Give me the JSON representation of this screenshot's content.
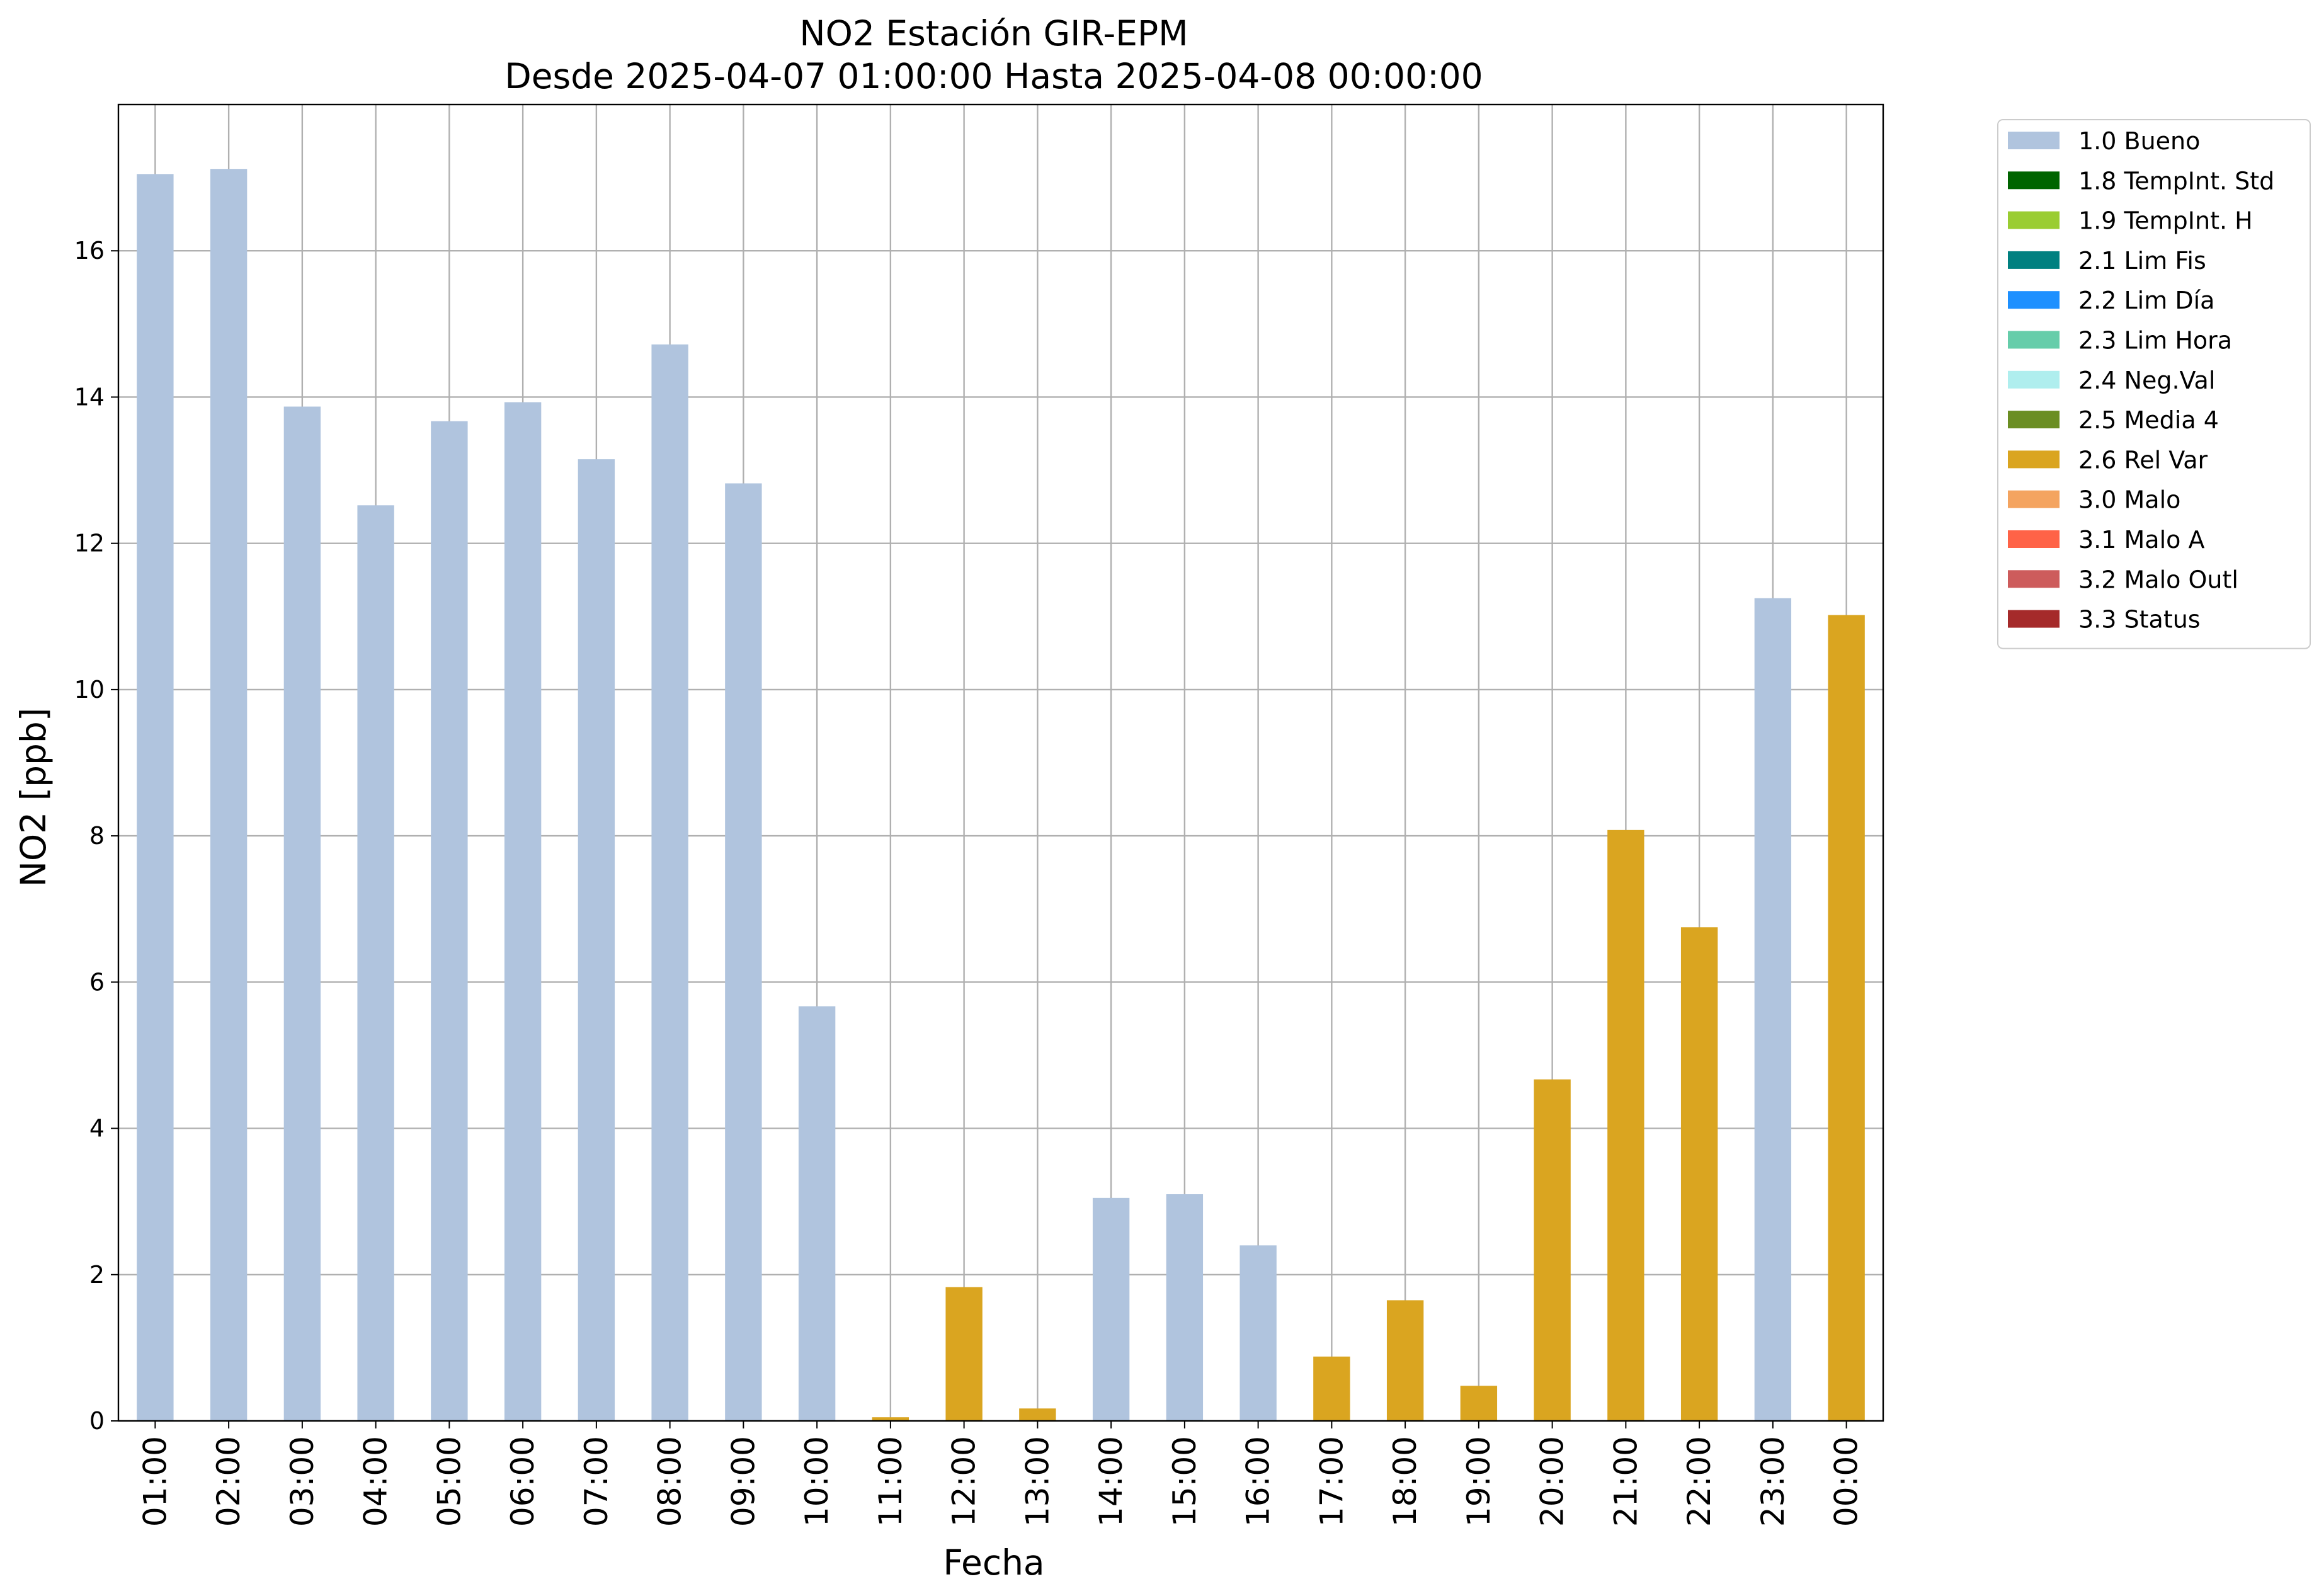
{
  "chart_data": {
    "type": "bar",
    "title": "NO2 Estación GIR-EPM",
    "subtitle": "Desde 2025-04-07 01:00:00 Hasta 2025-04-08 00:00:00",
    "xlabel": "Fecha",
    "ylabel": "NO2 [ppb]",
    "ylim": [
      0,
      18
    ],
    "yticks": [
      0,
      2,
      4,
      6,
      8,
      10,
      12,
      14,
      16
    ],
    "grid": true,
    "legend_position": "outside-top-right",
    "categories": [
      "01:00",
      "02:00",
      "03:00",
      "04:00",
      "05:00",
      "06:00",
      "07:00",
      "08:00",
      "09:00",
      "10:00",
      "11:00",
      "12:00",
      "13:00",
      "14:00",
      "15:00",
      "16:00",
      "17:00",
      "18:00",
      "19:00",
      "20:00",
      "21:00",
      "22:00",
      "23:00",
      "00:00"
    ],
    "values": [
      17.05,
      17.12,
      13.87,
      12.52,
      13.67,
      13.93,
      13.15,
      14.72,
      12.82,
      5.67,
      0.05,
      1.83,
      0.17,
      3.05,
      3.1,
      2.4,
      0.88,
      1.65,
      0.48,
      4.67,
      8.08,
      6.75,
      11.25,
      11.02
    ],
    "flags": [
      "1.0 Bueno",
      "1.0 Bueno",
      "1.0 Bueno",
      "1.0 Bueno",
      "1.0 Bueno",
      "1.0 Bueno",
      "1.0 Bueno",
      "1.0 Bueno",
      "1.0 Bueno",
      "1.0 Bueno",
      "2.6 Rel Var",
      "2.6 Rel Var",
      "2.6 Rel Var",
      "1.0 Bueno",
      "1.0 Bueno",
      "1.0 Bueno",
      "2.6 Rel Var",
      "2.6 Rel Var",
      "2.6 Rel Var",
      "2.6 Rel Var",
      "2.6 Rel Var",
      "2.6 Rel Var",
      "1.0 Bueno",
      "2.6 Rel Var"
    ],
    "legend": [
      {
        "label": "1.0 Bueno",
        "color": "#b0c4de"
      },
      {
        "label": "1.8 TempInt. Std",
        "color": "#006400"
      },
      {
        "label": "1.9 TempInt. H",
        "color": "#9acd32"
      },
      {
        "label": "2.1 Lim Fis",
        "color": "#008080"
      },
      {
        "label": "2.2 Lim Día",
        "color": "#1e90ff"
      },
      {
        "label": "2.3 Lim Hora",
        "color": "#66cdaa"
      },
      {
        "label": "2.4 Neg.Val",
        "color": "#afeeee"
      },
      {
        "label": "2.5 Media 4",
        "color": "#6b8e23"
      },
      {
        "label": "2.6 Rel Var",
        "color": "#daa520"
      },
      {
        "label": "3.0 Malo",
        "color": "#f4a460"
      },
      {
        "label": "3.1 Malo A",
        "color": "#ff6347"
      },
      {
        "label": "3.2 Malo Outl",
        "color": "#cd5c5c"
      },
      {
        "label": "3.3 Status",
        "color": "#a52a2a"
      }
    ]
  }
}
